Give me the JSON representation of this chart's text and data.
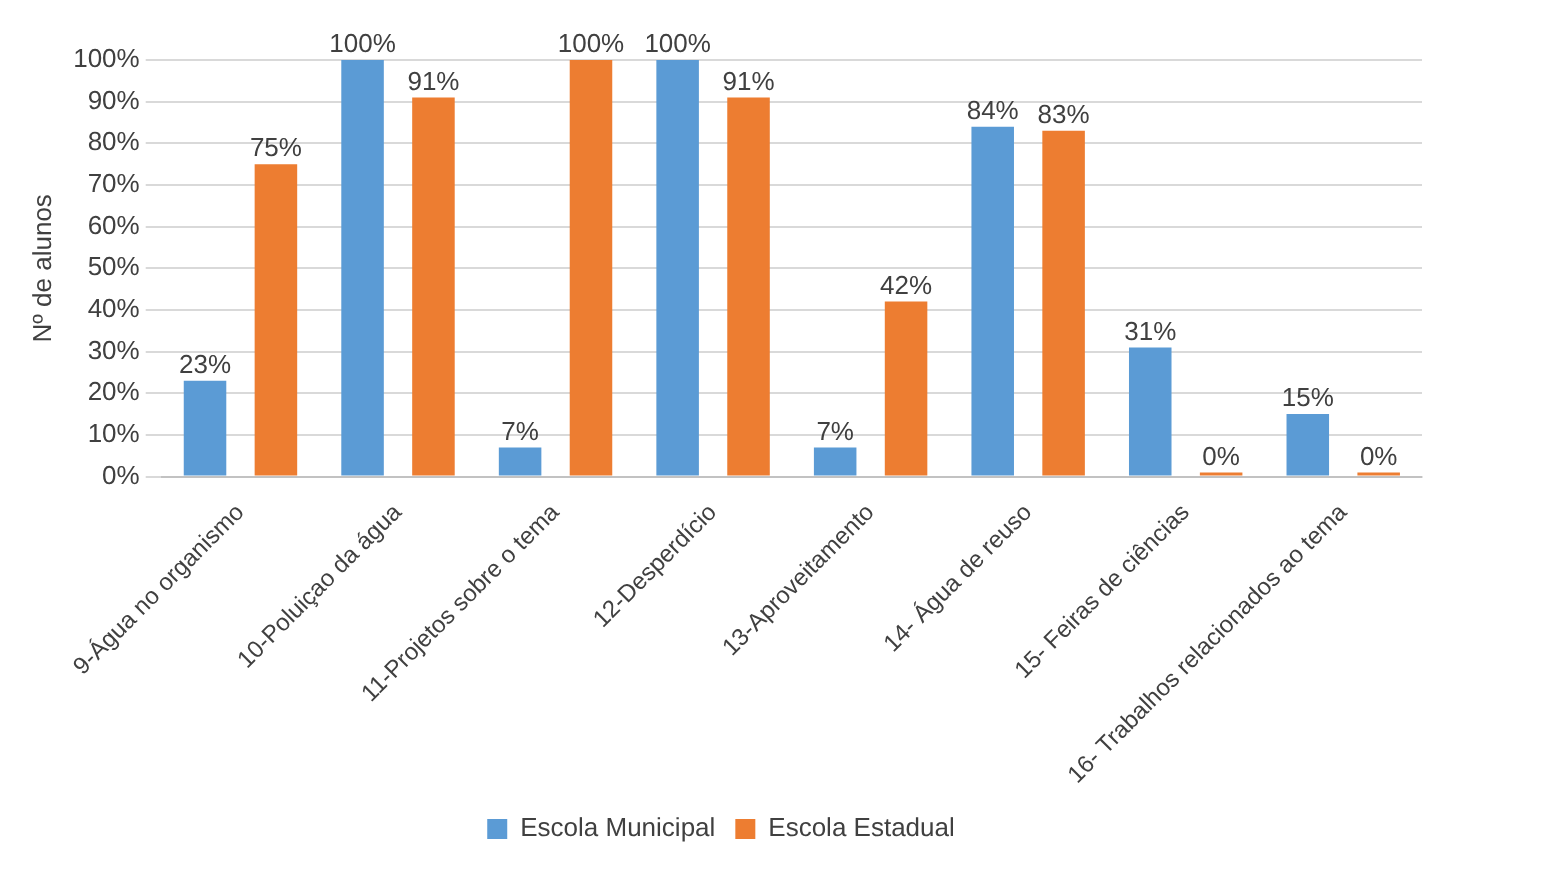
{
  "chart_data": {
    "type": "bar",
    "ylabel": "Nº de alunos",
    "categories": [
      "9-Água no organismo",
      "10-Poluiçao da água",
      "11-Projetos sobre o tema",
      "12-Desperdício",
      "13-Aproveitamento",
      "14- Água de reuso",
      "15- Feiras de ciências",
      "16- Trabalhos relacionados ao tema"
    ],
    "series": [
      {
        "name": "Escola Municipal",
        "color": "#5b9bd5",
        "values": [
          23,
          100,
          7,
          100,
          7,
          84,
          31,
          15
        ],
        "value_labels": [
          "23%",
          "100%",
          "7%",
          "100%",
          "7%",
          "84%",
          "31%",
          "15%"
        ]
      },
      {
        "name": "Escola Estadual",
        "color": "#ed7d31",
        "values": [
          75,
          91,
          100,
          91,
          42,
          83,
          0,
          0
        ],
        "value_labels": [
          "75%",
          "91%",
          "100%",
          "91%",
          "42%",
          "83%",
          "0%",
          "0%"
        ]
      }
    ],
    "ylim": [
      0,
      100
    ],
    "yticks": [
      {
        "value": 0,
        "label": "0%"
      },
      {
        "value": 10,
        "label": "10%"
      },
      {
        "value": 20,
        "label": "20%"
      },
      {
        "value": 30,
        "label": "30%"
      },
      {
        "value": 40,
        "label": "40%"
      },
      {
        "value": 50,
        "label": "50%"
      },
      {
        "value": 60,
        "label": "60%"
      },
      {
        "value": 70,
        "label": "70%"
      },
      {
        "value": 80,
        "label": "80%"
      },
      {
        "value": 90,
        "label": "90%"
      },
      {
        "value": 100,
        "label": "100%"
      }
    ],
    "grid": "y",
    "legend": "bottom"
  }
}
